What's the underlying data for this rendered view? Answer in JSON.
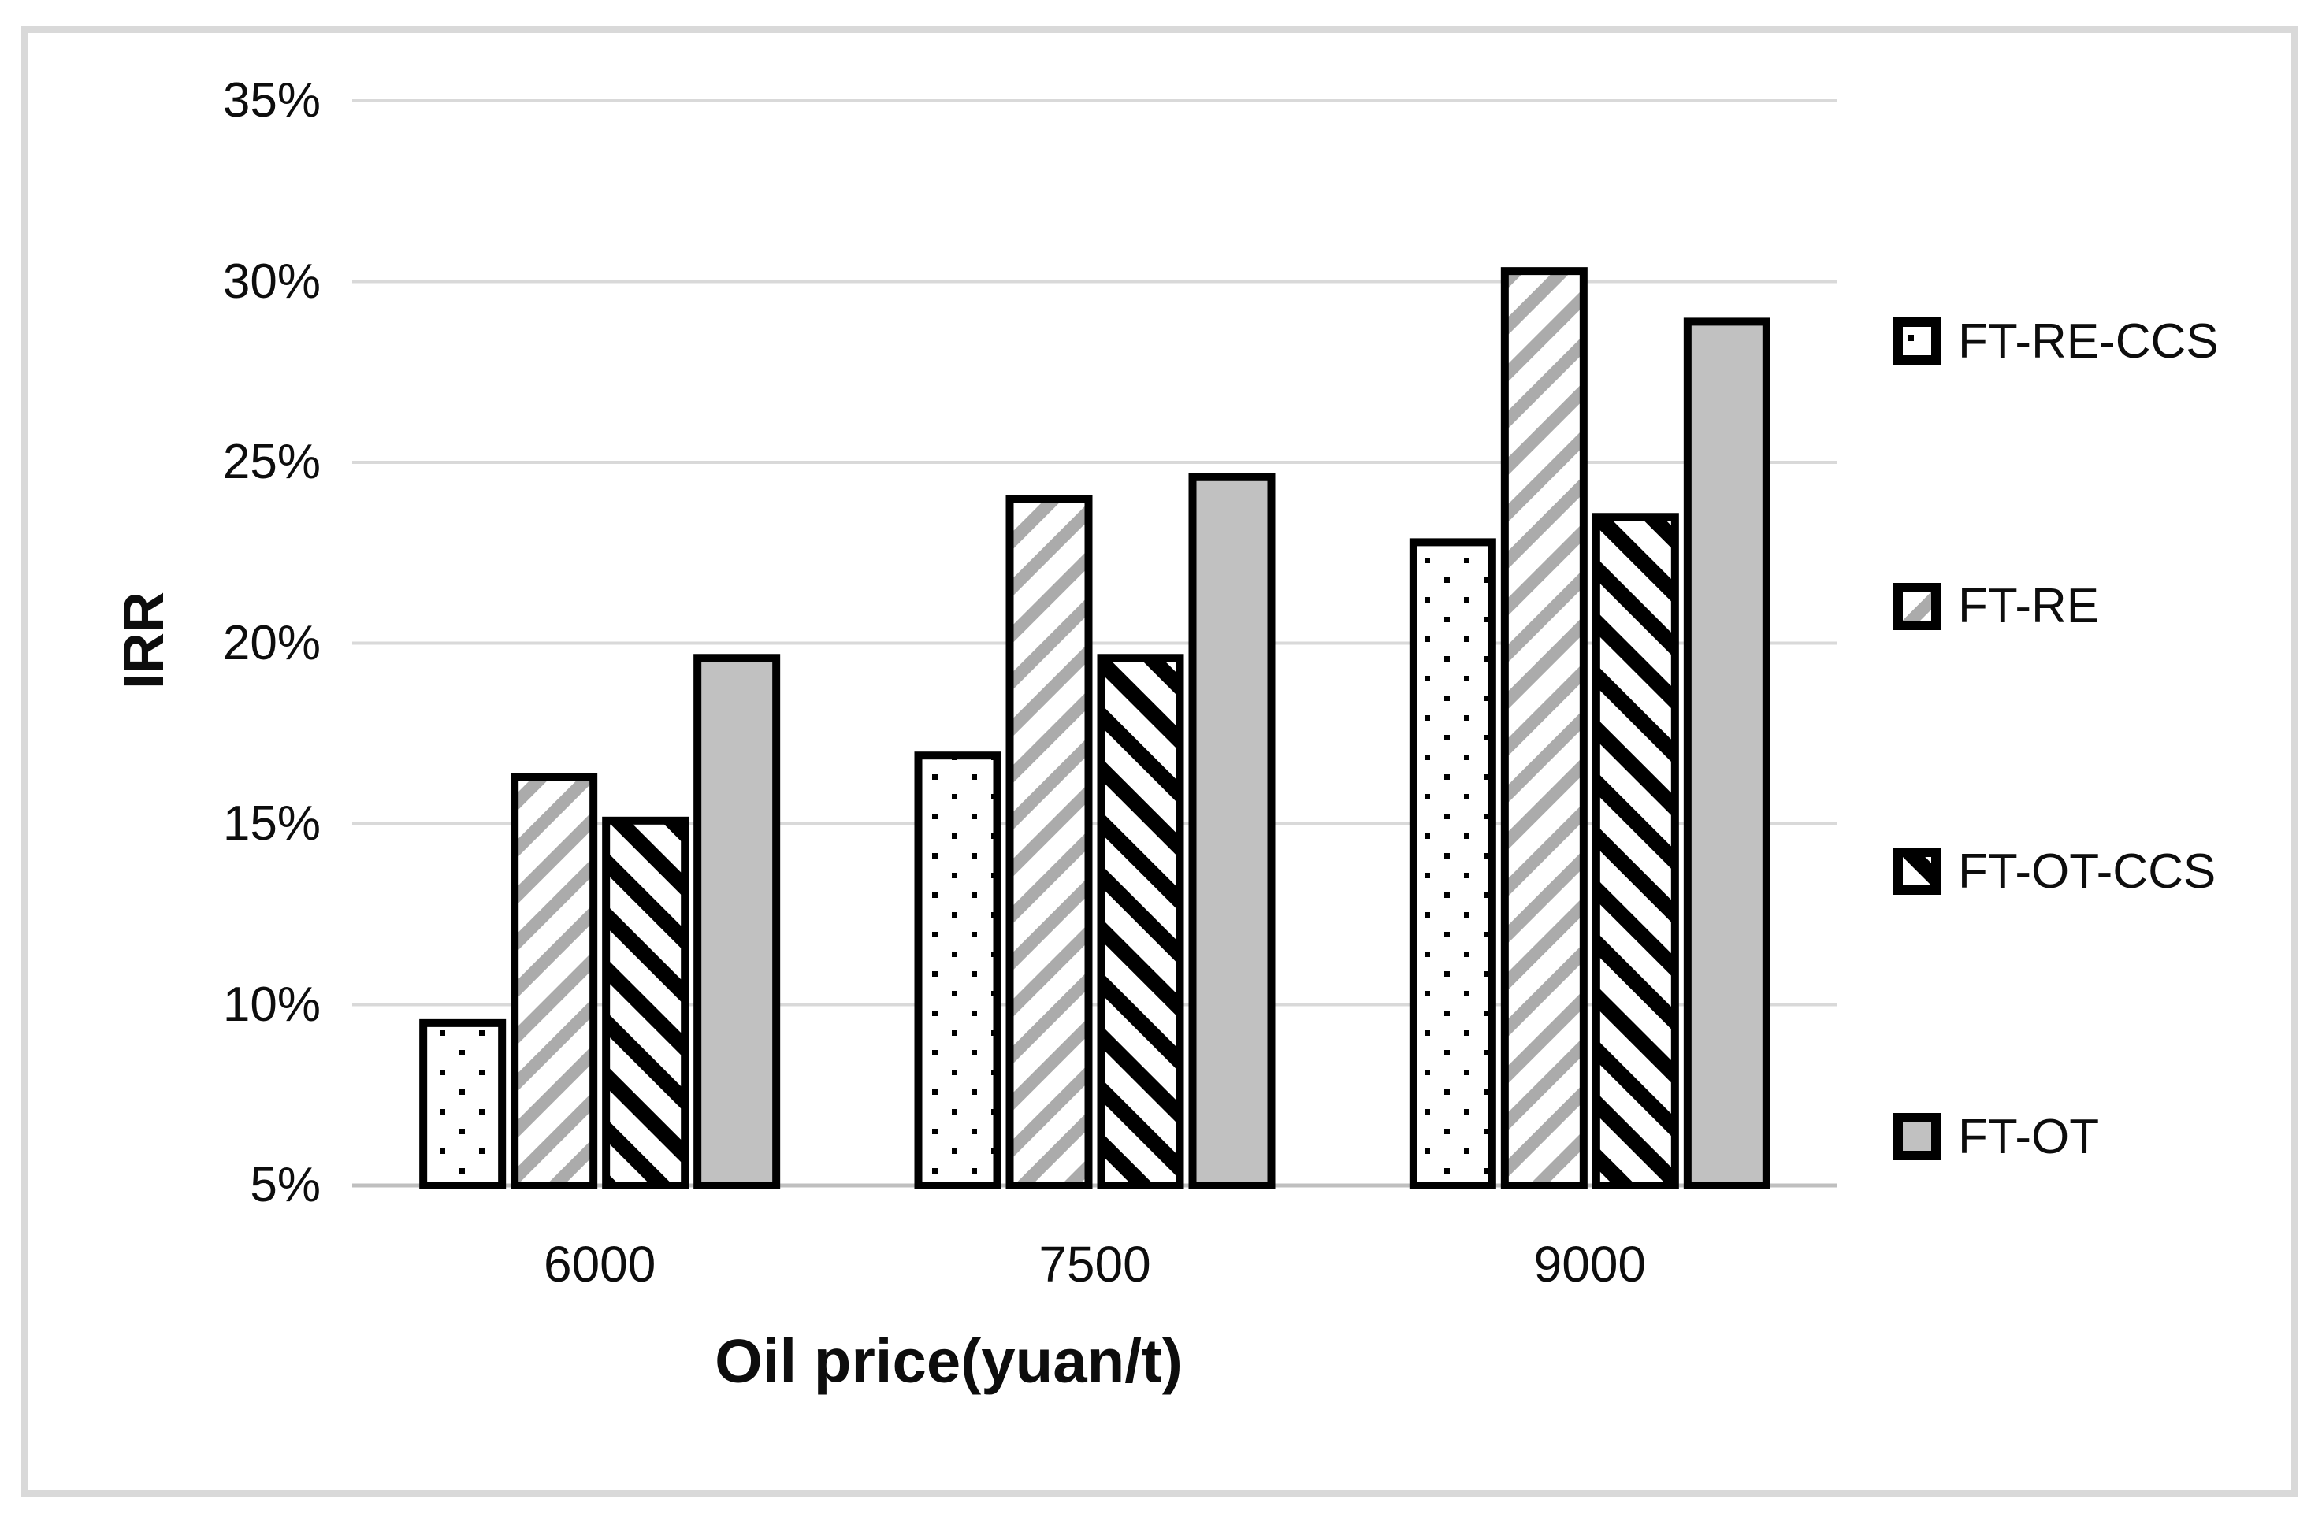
{
  "figure": {
    "background": "#ffffff",
    "border_color": "#d9d9d9"
  },
  "chart_data": {
    "type": "bar",
    "title": "",
    "categories": [
      "6000",
      "7500",
      "9000"
    ],
    "series": [
      {
        "name": "FT-RE-CCS",
        "pattern": "dots",
        "values": [
          9.6,
          17.0,
          22.9
        ]
      },
      {
        "name": "FT-RE",
        "pattern": "diagonal-up-gray",
        "values": [
          16.4,
          24.1,
          30.4
        ]
      },
      {
        "name": "FT-OT-CCS",
        "pattern": "diagonal-down-black",
        "values": [
          15.2,
          19.7,
          23.6
        ]
      },
      {
        "name": "FT-OT",
        "pattern": "solid-gray",
        "values": [
          19.7,
          24.7,
          29.0
        ]
      }
    ],
    "xlabel": "Oil price(yuan/t)",
    "ylabel": "IRR",
    "ylim": [
      5,
      35
    ],
    "ytick_step": 5,
    "ytick_labels": [
      "5%",
      "10%",
      "15%",
      "20%",
      "25%",
      "30%",
      "35%"
    ],
    "grid": true,
    "legend_position": "right",
    "colors": {
      "bar_gray": "#c1c1c1",
      "stripe_gray": "#ababab",
      "pattern_black": "#000000",
      "bar_border": "#000000",
      "gridline": "#d9d9d9",
      "axis_line": "#bfbfbf",
      "text": "#0d0d0d"
    }
  }
}
